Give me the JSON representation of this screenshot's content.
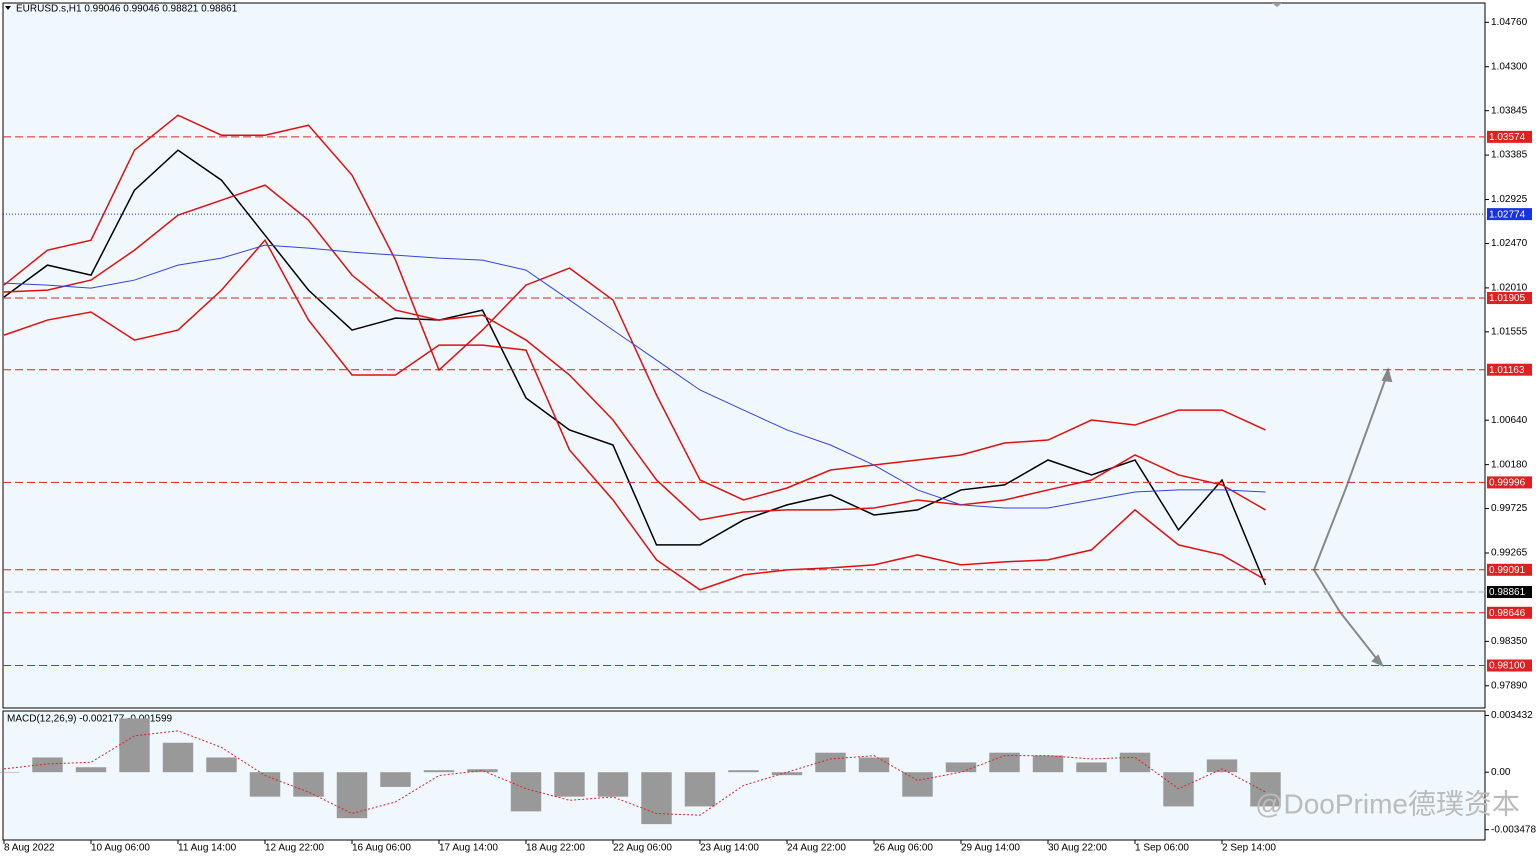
{
  "chart_data": [
    {
      "type": "line",
      "title": "EURUSD.s,H1  0.99046 0.99046 0.98821 0.98861",
      "watermark": "@DooPrime德璞资本",
      "categories": [
        "8 Aug 2022",
        null,
        "10 Aug 06:00",
        null,
        "11 Aug 14:00",
        null,
        "12 Aug 22:00",
        null,
        "16 Aug 06:00",
        null,
        "17 Aug 14:00",
        null,
        "18 Aug 22:00",
        null,
        "22 Aug 06:00",
        null,
        "23 Aug 14:00",
        null,
        "24 Aug 22:00",
        null,
        "26 Aug 06:00",
        null,
        "29 Aug 14:00",
        null,
        "30 Aug 22:00",
        null,
        "1 Sep 06:00",
        null,
        "2 Sep 14:00",
        null
      ],
      "series": [
        {
          "color": "#000000",
          "values": [
            1.01915,
            1.02246,
            1.02142,
            1.03022,
            1.03436,
            1.03125,
            1.02556,
            1.01987,
            1.01573,
            1.01697,
            1.01677,
            1.0178,
            1.0087,
            1.00539,
            1.00383,
            0.99349,
            0.99349,
            0.99607,
            0.99763,
            0.99866,
            0.99659,
            0.99711,
            0.99918,
            0.9997,
            1.00228,
            1.00073,
            1.00228,
            0.99504,
            1.00021,
            0.98935
          ]
        },
        {
          "color": "#e01010",
          "values": [
            1.02039,
            1.02401,
            1.02504,
            1.03436,
            1.03798,
            1.03591,
            1.03591,
            1.03694,
            1.03177,
            1.02298,
            1.01159,
            1.01573,
            1.02039,
            1.02215,
            1.01884,
            1.00901,
            1.00021,
            0.99814,
            0.99938,
            1.00124,
            1.00176,
            1.00228,
            1.0028,
            1.00404,
            1.00435,
            1.00642,
            1.0059,
            1.00745,
            1.00745,
            1.00539
          ]
        },
        {
          "color": "#e01010",
          "values": [
            1.01967,
            1.01987,
            1.02091,
            1.02401,
            1.02763,
            1.02918,
            1.03074,
            1.02711,
            1.02142,
            1.0178,
            1.01677,
            1.01728,
            1.0147,
            1.01108,
            1.00642,
            1.00021,
            0.99607,
            0.9969,
            0.99711,
            0.99711,
            0.99731,
            0.99814,
            0.99763,
            0.99814,
            0.99918,
            1.00021,
            1.0028,
            1.00073,
            0.9997,
            0.99711
          ]
        },
        {
          "color": "#e01010",
          "values": [
            1.01521,
            1.01677,
            1.0176,
            1.0147,
            1.01573,
            1.01987,
            1.02504,
            1.01677,
            1.01108,
            1.01108,
            1.01418,
            1.01418,
            1.01366,
            1.00332,
            0.99814,
            0.99194,
            0.98883,
            0.99038,
            0.9909,
            0.99111,
            0.99142,
            0.99245,
            0.99142,
            0.99173,
            0.99194,
            0.99297,
            0.99711,
            0.99349,
            0.99245,
            0.98987
          ]
        },
        {
          "color": "#3344dd",
          "values": [
            1.0206,
            1.02039,
            1.02008,
            1.02091,
            1.02246,
            1.02318,
            1.02453,
            1.02422,
            1.0238,
            1.02349,
            1.02318,
            1.02298,
            1.02194,
            1.01884,
            1.01573,
            1.01263,
            1.00953,
            1.00745,
            1.00539,
            1.00383,
            1.00176,
            0.99918,
            0.99763,
            0.99731,
            0.99731,
            0.99814,
            0.99897,
            0.99918,
            0.99918,
            0.99897
          ]
        }
      ],
      "ylim": [
        0.9766,
        1.0496
      ],
      "yticks": [
        {
          "value": 1.0476,
          "label": "1.04760"
        },
        {
          "value": 1.043,
          "label": "1.04300"
        },
        {
          "value": 1.03845,
          "label": "1.03845"
        },
        {
          "value": 1.03385,
          "label": "1.03385"
        },
        {
          "value": 1.02925,
          "label": "1.02925"
        },
        {
          "value": 1.0247,
          "label": "1.02470"
        },
        {
          "value": 1.0201,
          "label": "1.02010"
        },
        {
          "value": 1.01555,
          "label": "1.01555"
        },
        {
          "value": 1.0064,
          "label": "1.00640"
        },
        {
          "value": 1.0018,
          "label": "1.00180"
        },
        {
          "value": 0.99725,
          "label": "0.99725"
        },
        {
          "value": 0.99265,
          "label": "0.99265"
        },
        {
          "value": 0.9835,
          "label": "0.98350"
        },
        {
          "value": 0.9789,
          "label": "0.97890"
        }
      ],
      "levels": {
        "values": [
          1.03574,
          1.02774,
          1.01905,
          1.01163,
          0.99996,
          0.99091,
          0.98861,
          0.98646,
          0.981
        ],
        "value_labels": [
          "1.03574",
          "1.02774",
          "1.01905",
          "1.01163",
          "0.99996",
          "0.99091",
          "0.98861",
          "0.98646",
          "0.98100"
        ],
        "colors": [
          "#e02020",
          "#1a33e0",
          "#e02020",
          "#e02020",
          "#e02020",
          "#e02020",
          "#000000",
          "#e02020",
          "#e02020"
        ]
      }
    },
    {
      "type": "bar",
      "title": "MACD(12,26,9) -0.002177 -0.001599",
      "color": "#999999",
      "values": [
        0,
        0.00089,
        0.0003,
        0.00325,
        0.00178,
        0.00089,
        -0.00148,
        -0.00148,
        -0.00278,
        -0.00089,
        0.00012,
        0.00018,
        -0.00237,
        -0.00148,
        -0.00148,
        -0.00314,
        -0.00207,
        0.00012,
        -0.00018,
        0.00118,
        0.00089,
        -0.00148,
        0.00059,
        0.00118,
        0.00101,
        0.00059,
        0.00118,
        -0.00207,
        0.00077,
        -0.00207
      ],
      "series": [
        {
          "color": "#e02020",
          "values": [
            0.0002,
            0.0005,
            0.0006,
            0.0022,
            0.0025,
            0.0015,
            -0.0002,
            -0.0012,
            -0.0025,
            -0.0018,
            -0.0002,
            0.0001,
            -0.001,
            -0.0017,
            -0.0015,
            -0.0025,
            -0.0026,
            -0.0008,
            0,
            0.0008,
            0.001,
            -0.0005,
            0,
            0.001,
            0.001,
            0.0008,
            0.0009,
            -0.001,
            0.0002,
            -0.0012
          ]
        }
      ],
      "ylim": [
        -0.0041,
        0.0037
      ],
      "yticks": [
        0.003432,
        {
          "value": 0,
          "label": "0.00"
        },
        -0.003478
      ]
    }
  ]
}
